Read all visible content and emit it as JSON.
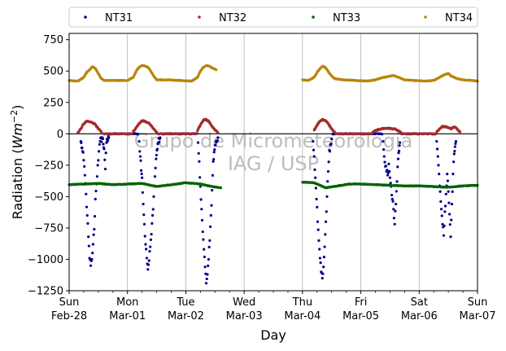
{
  "chart_data": {
    "type": "scatter",
    "title": "",
    "xlabel": "Day",
    "ylabel_main": "Radiation (",
    "ylabel_unit": "Wm",
    "ylabel_exp": "−2",
    "ylabel_close": ")",
    "ylim": [
      -1250,
      800
    ],
    "yticks": [
      -1250,
      -1000,
      -750,
      -500,
      -250,
      0,
      250,
      500,
      750
    ],
    "ytick_labels": [
      "−1250",
      "−1000",
      "−750",
      "−500",
      "−250",
      "0",
      "250",
      "500",
      "750"
    ],
    "xlim": [
      0,
      7
    ],
    "xticks": [
      {
        "day": 0,
        "top": "Sun",
        "bottom": "Feb-28"
      },
      {
        "day": 1,
        "top": "Mon",
        "bottom": "Mar-01"
      },
      {
        "day": 2,
        "top": "Tue",
        "bottom": "Mar-02"
      },
      {
        "day": 3,
        "top": "Wed",
        "bottom": "Mar-03"
      },
      {
        "day": 4,
        "top": "Thu",
        "bottom": "Mar-04"
      },
      {
        "day": 5,
        "top": "Fri",
        "bottom": "Mar-05"
      },
      {
        "day": 6,
        "top": "Sat",
        "bottom": "Mar-06"
      },
      {
        "day": 7,
        "top": "Sun",
        "bottom": "Mar-07"
      }
    ],
    "grid": "vertical",
    "zero_line": true,
    "legend_position": "top",
    "data_gap": [
      2.62,
      4.0
    ],
    "series": [
      {
        "name": "NT31",
        "color": "#00008b",
        "points": [
          [
            0.2,
            -60
          ],
          [
            0.23,
            -140
          ],
          [
            0.25,
            -210
          ],
          [
            0.27,
            -330
          ],
          [
            0.29,
            -480
          ],
          [
            0.31,
            -650
          ],
          [
            0.33,
            -820
          ],
          [
            0.35,
            -990
          ],
          [
            0.37,
            -1050
          ],
          [
            0.39,
            -1000
          ],
          [
            0.41,
            -880
          ],
          [
            0.43,
            -760
          ],
          [
            0.45,
            -520
          ],
          [
            0.47,
            -400
          ],
          [
            0.49,
            -250
          ],
          [
            0.51,
            -140
          ],
          [
            0.53,
            -60
          ],
          [
            0.57,
            -30
          ],
          [
            0.6,
            -120
          ],
          [
            0.62,
            -280
          ],
          [
            0.64,
            -70
          ],
          [
            0.68,
            -30
          ],
          [
            1.2,
            -60
          ],
          [
            1.22,
            -180
          ],
          [
            1.25,
            -350
          ],
          [
            1.27,
            -560
          ],
          [
            1.29,
            -720
          ],
          [
            1.31,
            -880
          ],
          [
            1.33,
            -990
          ],
          [
            1.35,
            -1080
          ],
          [
            1.37,
            -1010
          ],
          [
            1.39,
            -900
          ],
          [
            1.41,
            -800
          ],
          [
            1.43,
            -650
          ],
          [
            1.45,
            -500
          ],
          [
            1.47,
            -340
          ],
          [
            1.49,
            -200
          ],
          [
            1.52,
            -80
          ],
          [
            1.56,
            -30
          ],
          [
            2.21,
            -70
          ],
          [
            2.23,
            -220
          ],
          [
            2.25,
            -420
          ],
          [
            2.27,
            -600
          ],
          [
            2.29,
            -780
          ],
          [
            2.31,
            -920
          ],
          [
            2.33,
            -1060
          ],
          [
            2.35,
            -1190
          ],
          [
            2.37,
            -1120
          ],
          [
            2.39,
            -1000
          ],
          [
            2.41,
            -850
          ],
          [
            2.43,
            -650
          ],
          [
            2.45,
            -450
          ],
          [
            2.47,
            -220
          ],
          [
            2.5,
            -90
          ],
          [
            2.55,
            -30
          ],
          [
            4.18,
            -60
          ],
          [
            4.2,
            -180
          ],
          [
            4.22,
            -350
          ],
          [
            4.24,
            -520
          ],
          [
            4.26,
            -700
          ],
          [
            4.28,
            -850
          ],
          [
            4.3,
            -990
          ],
          [
            4.32,
            -1100
          ],
          [
            4.34,
            -1150
          ],
          [
            4.36,
            -1060
          ],
          [
            4.38,
            -900
          ],
          [
            4.4,
            -700
          ],
          [
            4.42,
            -500
          ],
          [
            4.44,
            -300
          ],
          [
            4.46,
            -130
          ],
          [
            4.5,
            -40
          ],
          [
            5.38,
            -60
          ],
          [
            5.4,
            -180
          ],
          [
            5.42,
            -260
          ],
          [
            5.44,
            -300
          ],
          [
            5.46,
            -330
          ],
          [
            5.48,
            -240
          ],
          [
            5.5,
            -350
          ],
          [
            5.52,
            -420
          ],
          [
            5.54,
            -520
          ],
          [
            5.56,
            -600
          ],
          [
            5.58,
            -720
          ],
          [
            5.6,
            -560
          ],
          [
            5.62,
            -380
          ],
          [
            5.64,
            -200
          ],
          [
            5.67,
            -70
          ],
          [
            6.3,
            -60
          ],
          [
            6.32,
            -180
          ],
          [
            6.34,
            -320
          ],
          [
            6.36,
            -460
          ],
          [
            6.38,
            -600
          ],
          [
            6.4,
            -720
          ],
          [
            6.42,
            -810
          ],
          [
            6.44,
            -620
          ],
          [
            6.46,
            -480
          ],
          [
            6.48,
            -320
          ],
          [
            6.5,
            -460
          ],
          [
            6.52,
            -640
          ],
          [
            6.54,
            -820
          ],
          [
            6.56,
            -560
          ],
          [
            6.58,
            -320
          ],
          [
            6.6,
            -160
          ],
          [
            6.63,
            -60
          ]
        ]
      },
      {
        "name": "NT32",
        "color": "#a52a2a",
        "points": [
          [
            0.15,
            10
          ],
          [
            0.2,
            40
          ],
          [
            0.25,
            80
          ],
          [
            0.3,
            100
          ],
          [
            0.35,
            95
          ],
          [
            0.4,
            90
          ],
          [
            0.45,
            75
          ],
          [
            0.5,
            40
          ],
          [
            0.55,
            15
          ],
          [
            1.1,
            20
          ],
          [
            1.15,
            50
          ],
          [
            1.2,
            85
          ],
          [
            1.25,
            105
          ],
          [
            1.3,
            100
          ],
          [
            1.35,
            90
          ],
          [
            1.4,
            70
          ],
          [
            1.45,
            40
          ],
          [
            1.5,
            15
          ],
          [
            2.2,
            25
          ],
          [
            2.25,
            70
          ],
          [
            2.3,
            110
          ],
          [
            2.35,
            115
          ],
          [
            2.4,
            95
          ],
          [
            2.45,
            60
          ],
          [
            2.5,
            30
          ],
          [
            2.55,
            10
          ],
          [
            4.2,
            30
          ],
          [
            4.25,
            70
          ],
          [
            4.3,
            100
          ],
          [
            4.35,
            115
          ],
          [
            4.4,
            105
          ],
          [
            4.45,
            75
          ],
          [
            4.5,
            40
          ],
          [
            4.55,
            15
          ],
          [
            5.2,
            10
          ],
          [
            5.25,
            25
          ],
          [
            5.35,
            40
          ],
          [
            5.45,
            45
          ],
          [
            5.55,
            40
          ],
          [
            5.6,
            35
          ],
          [
            5.65,
            20
          ],
          [
            5.7,
            5
          ],
          [
            6.3,
            15
          ],
          [
            6.35,
            40
          ],
          [
            6.4,
            60
          ],
          [
            6.45,
            55
          ],
          [
            6.5,
            50
          ],
          [
            6.55,
            40
          ],
          [
            6.6,
            55
          ],
          [
            6.65,
            40
          ],
          [
            6.7,
            15
          ]
        ]
      },
      {
        "name": "NT33",
        "color": "#006400",
        "points": [
          [
            0.0,
            -405
          ],
          [
            0.25,
            -400
          ],
          [
            0.5,
            -395
          ],
          [
            0.75,
            -405
          ],
          [
            1.0,
            -400
          ],
          [
            1.25,
            -395
          ],
          [
            1.5,
            -420
          ],
          [
            1.75,
            -405
          ],
          [
            2.0,
            -390
          ],
          [
            2.25,
            -400
          ],
          [
            2.45,
            -420
          ],
          [
            2.6,
            -430
          ],
          [
            4.0,
            -385
          ],
          [
            4.2,
            -390
          ],
          [
            4.4,
            -430
          ],
          [
            4.6,
            -415
          ],
          [
            4.8,
            -400
          ],
          [
            5.0,
            -400
          ],
          [
            5.25,
            -405
          ],
          [
            5.5,
            -410
          ],
          [
            5.75,
            -415
          ],
          [
            6.0,
            -415
          ],
          [
            6.25,
            -420
          ],
          [
            6.5,
            -425
          ],
          [
            6.75,
            -415
          ],
          [
            7.0,
            -410
          ]
        ]
      },
      {
        "name": "NT34",
        "color": "#b8860b",
        "points": [
          [
            0.0,
            425
          ],
          [
            0.15,
            420
          ],
          [
            0.25,
            450
          ],
          [
            0.3,
            490
          ],
          [
            0.35,
            510
          ],
          [
            0.4,
            535
          ],
          [
            0.45,
            520
          ],
          [
            0.5,
            480
          ],
          [
            0.55,
            440
          ],
          [
            0.6,
            425
          ],
          [
            0.8,
            425
          ],
          [
            1.0,
            425
          ],
          [
            1.1,
            450
          ],
          [
            1.15,
            500
          ],
          [
            1.2,
            530
          ],
          [
            1.25,
            545
          ],
          [
            1.3,
            540
          ],
          [
            1.35,
            530
          ],
          [
            1.4,
            500
          ],
          [
            1.45,
            460
          ],
          [
            1.5,
            430
          ],
          [
            1.7,
            430
          ],
          [
            1.9,
            425
          ],
          [
            2.1,
            420
          ],
          [
            2.2,
            450
          ],
          [
            2.25,
            500
          ],
          [
            2.3,
            530
          ],
          [
            2.35,
            545
          ],
          [
            2.4,
            540
          ],
          [
            2.45,
            525
          ],
          [
            2.52,
            510
          ],
          [
            4.0,
            430
          ],
          [
            4.1,
            425
          ],
          [
            4.2,
            450
          ],
          [
            4.25,
            490
          ],
          [
            4.3,
            520
          ],
          [
            4.35,
            540
          ],
          [
            4.4,
            525
          ],
          [
            4.45,
            490
          ],
          [
            4.5,
            460
          ],
          [
            4.55,
            440
          ],
          [
            4.7,
            430
          ],
          [
            4.9,
            425
          ],
          [
            5.1,
            420
          ],
          [
            5.25,
            430
          ],
          [
            5.35,
            445
          ],
          [
            5.45,
            455
          ],
          [
            5.55,
            465
          ],
          [
            5.65,
            450
          ],
          [
            5.75,
            430
          ],
          [
            5.9,
            425
          ],
          [
            6.1,
            420
          ],
          [
            6.25,
            425
          ],
          [
            6.35,
            450
          ],
          [
            6.45,
            475
          ],
          [
            6.5,
            480
          ],
          [
            6.55,
            460
          ],
          [
            6.65,
            440
          ],
          [
            6.75,
            430
          ],
          [
            6.9,
            425
          ],
          [
            7.0,
            420
          ]
        ]
      }
    ]
  },
  "watermark": {
    "line1": "Grupo de Micrometeorologia",
    "line2": "IAG / USP"
  }
}
